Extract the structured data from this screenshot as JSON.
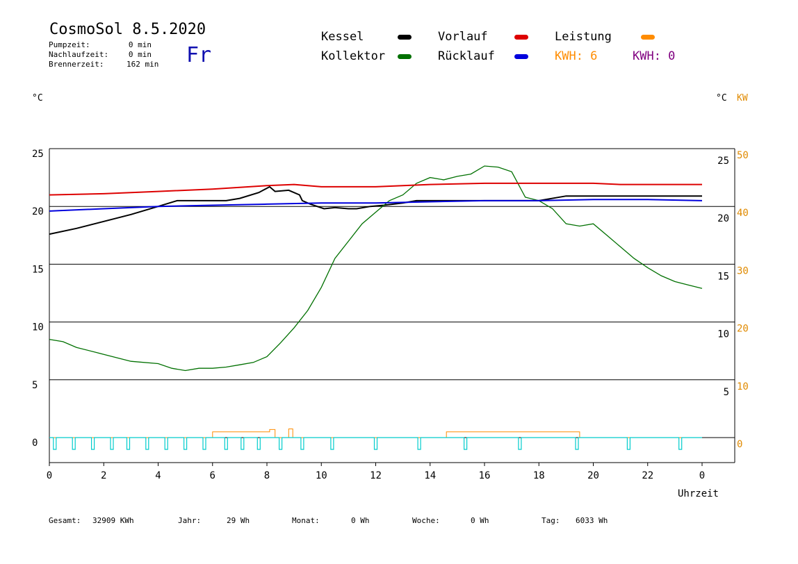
{
  "header": {
    "title": "CosmoSol 8.5.2020",
    "day": "Fr",
    "stats": [
      {
        "label": "Pumpzeit:",
        "value": "0 min"
      },
      {
        "label": "Nachlaufzeit:",
        "value": "0 min"
      },
      {
        "label": "Brennerzeit:",
        "value": "162 min"
      }
    ]
  },
  "legend": {
    "kessel": "Kessel",
    "kollektor": "Kollektor",
    "vorlauf": "Vorlauf",
    "ruecklauf": "Rücklauf",
    "leistung": "Leistung",
    "kwh1": "KWH: 6",
    "kwh2": "KWH: 0"
  },
  "units": {
    "left_c": "°C",
    "right_c": "°C",
    "right_kw": "KW"
  },
  "footer": {
    "gesamt_label": "Gesamt:",
    "gesamt_value": "32909 KWh",
    "jahr_label": "Jahr:",
    "jahr_value": "29 Wh",
    "monat_label": "Monat:",
    "monat_value": "0 Wh",
    "woche_label": "Woche:",
    "woche_value": "0 Wh",
    "tag_label": "Tag:",
    "tag_value": "6033 Wh"
  },
  "colors": {
    "kessel": "#000000",
    "kollektor": "#007000",
    "vorlauf": "#dd0000",
    "ruecklauf": "#0000dd",
    "leistung": "#ff8c00",
    "kwh2": "#800080",
    "pump": "#00cccc",
    "kw_axis": "#e08a00"
  },
  "chart_data": {
    "type": "line",
    "xlabel": "Uhrzeit",
    "xlim": [
      0,
      24
    ],
    "ylim_left": [
      -2,
      25
    ],
    "ylim_right_kw": [
      -2,
      50
    ],
    "x_ticks": [
      "0",
      "2",
      "4",
      "6",
      "8",
      "10",
      "12",
      "14",
      "16",
      "18",
      "20",
      "22",
      "0"
    ],
    "y_left_ticks": [
      "25",
      "20",
      "15",
      "10",
      "5",
      "0"
    ],
    "y_right_c_ticks": [
      "25",
      "20",
      "15",
      "10",
      "5"
    ],
    "y_right_kw_ticks": [
      "50",
      "40",
      "30",
      "20",
      "10",
      "0"
    ],
    "series": [
      {
        "name": "Kessel",
        "x": [
          0,
          1,
          2,
          3,
          4,
          4.7,
          5.5,
          6.5,
          7,
          7.7,
          8.1,
          8.3,
          8.8,
          9.2,
          9.3,
          9.6,
          10.1,
          10.5,
          11,
          11.3,
          11.8,
          12.3,
          13,
          13.5,
          14,
          16,
          18,
          19,
          24
        ],
        "y": [
          17.6,
          18.1,
          18.7,
          19.3,
          20,
          20.5,
          20.5,
          20.5,
          20.7,
          21.2,
          21.7,
          21.3,
          21.4,
          21.0,
          20.5,
          20.2,
          19.8,
          19.9,
          19.8,
          19.8,
          20.0,
          20.1,
          20.3,
          20.5,
          20.5,
          20.5,
          20.5,
          20.9,
          20.9
        ]
      },
      {
        "name": "Kollektor",
        "x": [
          0,
          0.5,
          1,
          2,
          3,
          4,
          4.5,
          5,
          5.5,
          6,
          6.5,
          7,
          7.5,
          8,
          8.5,
          9,
          9.5,
          10,
          10.5,
          11,
          11.5,
          12,
          12.5,
          13,
          13.5,
          14,
          14.5,
          15,
          15.5,
          16,
          16.5,
          17,
          17.5,
          18,
          18.5,
          19,
          19.5,
          20,
          20.5,
          21,
          21.5,
          22,
          22.5,
          23,
          23.5,
          24
        ],
        "y": [
          8.5,
          8.3,
          7.8,
          7.2,
          6.6,
          6.4,
          6.0,
          5.8,
          6.0,
          6.0,
          6.1,
          6.3,
          6.5,
          7.0,
          8.2,
          9.5,
          11.0,
          13.0,
          15.5,
          17.0,
          18.5,
          19.5,
          20.5,
          21.0,
          22.0,
          22.5,
          22.3,
          22.6,
          22.8,
          23.5,
          23.4,
          23.0,
          20.8,
          20.5,
          19.8,
          18.5,
          18.3,
          18.5,
          17.5,
          16.5,
          15.5,
          14.7,
          14.0,
          13.5,
          13.2,
          12.9
        ]
      },
      {
        "name": "Vorlauf",
        "x": [
          0,
          2,
          4,
          6,
          8,
          9,
          10,
          12,
          14,
          16,
          18,
          20,
          21,
          24
        ],
        "y": [
          21.0,
          21.1,
          21.3,
          21.5,
          21.8,
          21.9,
          21.7,
          21.7,
          21.9,
          22.0,
          22.0,
          22.0,
          21.9,
          21.9
        ]
      },
      {
        "name": "Rücklauf",
        "x": [
          0,
          2,
          4,
          6,
          8,
          10,
          12,
          14,
          16,
          18,
          20,
          22,
          24
        ],
        "y": [
          19.6,
          19.8,
          20.0,
          20.1,
          20.2,
          20.3,
          20.3,
          20.4,
          20.5,
          20.5,
          20.6,
          20.6,
          20.5
        ]
      },
      {
        "name": "Leistung",
        "axis": "kw",
        "x": [
          0,
          6.0,
          6.0,
          8.1,
          8.1,
          8.3,
          8.3,
          8.8,
          8.8,
          8.95,
          8.95,
          14.6,
          14.6,
          19.5,
          19.5,
          24
        ],
        "y": [
          0,
          0,
          1,
          1,
          1.4,
          1.4,
          0,
          0,
          1.5,
          1.5,
          0,
          0,
          1,
          1,
          0,
          0
        ]
      }
    ],
    "pump_pulses_hours": [
      0.2,
      0.9,
      1.6,
      2.3,
      2.9,
      3.6,
      4.3,
      5.0,
      5.7,
      6.5,
      7.1,
      7.7,
      8.5,
      9.3,
      10.4,
      12.0,
      13.6,
      15.3,
      17.3,
      19.4,
      21.3,
      23.2
    ]
  }
}
